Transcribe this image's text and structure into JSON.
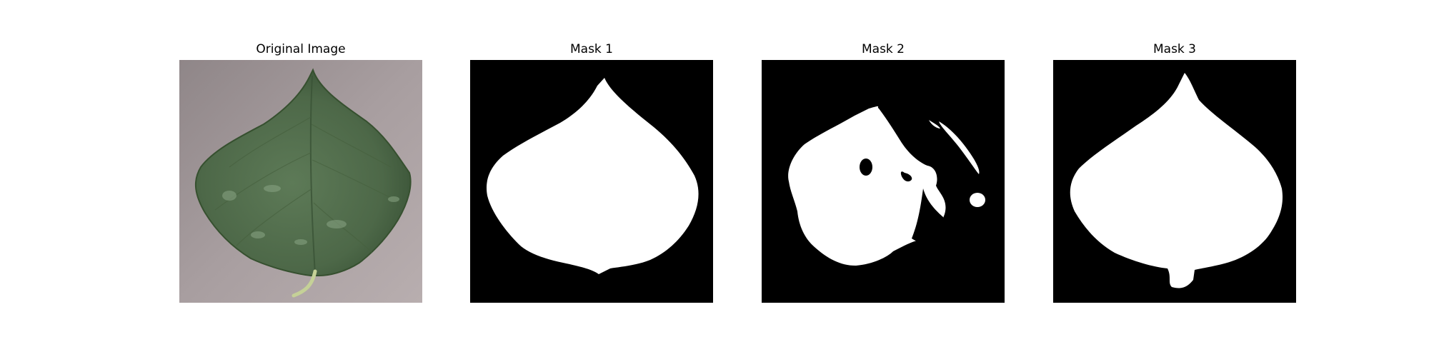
{
  "figure": {
    "panels": [
      {
        "title": "Original Image",
        "kind": "photo"
      },
      {
        "title": "Mask 1",
        "kind": "mask"
      },
      {
        "title": "Mask 2",
        "kind": "mask"
      },
      {
        "title": "Mask 3",
        "kind": "mask"
      }
    ]
  },
  "colors": {
    "background": "#ffffff",
    "photo_backdrop": "#a69a9d",
    "leaf_green": "#4f6b4a",
    "leaf_dark": "#3d5739",
    "leaf_highlight": "#7d9a79",
    "stem": "#c8d29a",
    "mask_background": "#000000",
    "mask_foreground": "#ffffff"
  }
}
